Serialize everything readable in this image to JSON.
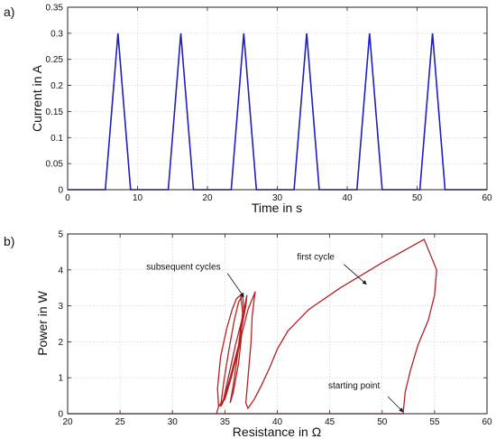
{
  "chart_data": [
    {
      "panel": "a)",
      "type": "line",
      "xlabel": "Time in s",
      "ylabel": "Current in A",
      "xlim": [
        0,
        60
      ],
      "ylim": [
        0,
        0.35
      ],
      "xticks": [
        "0",
        "10",
        "20",
        "30",
        "40",
        "50",
        "60"
      ],
      "yticks": [
        "0",
        "0.05",
        "0.1",
        "0.15",
        "0.2",
        "0.25",
        "0.3",
        "0.35"
      ],
      "grid": true,
      "color": "#1f1fbf",
      "series": [
        {
          "x": [
            0,
            5.4,
            7.2,
            9.0,
            14.4,
            16.2,
            18.0,
            23.4,
            25.2,
            27.0,
            32.4,
            34.2,
            36.0,
            41.4,
            43.2,
            45.0,
            50.4,
            52.2,
            54.0,
            60
          ],
          "y": [
            0,
            0,
            0.3,
            0,
            0,
            0.3,
            0,
            0,
            0.3,
            0,
            0,
            0.3,
            0,
            0,
            0.3,
            0,
            0,
            0.3,
            0,
            0
          ]
        }
      ]
    },
    {
      "panel": "b)",
      "type": "line",
      "xlabel": "Resistance in Ω",
      "ylabel": "Power in W",
      "xlim": [
        20,
        60
      ],
      "ylim": [
        0,
        5
      ],
      "xticks": [
        "20",
        "25",
        "30",
        "35",
        "40",
        "45",
        "50",
        "55",
        "60"
      ],
      "yticks": [
        "0",
        "1",
        "2",
        "3",
        "4",
        "5"
      ],
      "grid": true,
      "color": "#b22222",
      "series": [
        {
          "x": [
            20,
            34,
            52.0,
            52.2,
            52.7,
            53.4,
            54.4,
            55.0,
            55.2,
            54.0,
            50.0,
            46.0,
            43.0,
            41.0,
            40.0,
            39.3,
            38.5,
            37.8,
            37.2,
            37.0,
            37.2,
            37.5,
            37.6,
            37.8,
            37.9,
            37.2,
            36.6,
            36.3,
            35.8,
            35.5,
            35.8,
            36.2,
            36.6,
            37.0,
            37.1,
            36.7,
            36.0,
            35.4,
            34.8,
            34.6,
            34.9,
            35.4,
            35.9,
            36.3,
            36.7,
            36.8,
            36.4,
            35.6,
            35.0,
            34.4,
            34.3,
            34.6,
            35.2,
            35.7,
            36.1,
            36.5,
            36.7,
            36.3,
            35.5,
            34.9,
            34.4,
            34.2
          ],
          "y": [
            0,
            0,
            0,
            0.6,
            1.2,
            1.9,
            2.6,
            3.3,
            4.0,
            4.85,
            4.2,
            3.5,
            2.9,
            2.3,
            1.8,
            1.3,
            0.8,
            0.4,
            0.15,
            0.3,
            1.0,
            2.0,
            2.7,
            3.2,
            3.4,
            2.9,
            2.2,
            1.4,
            0.6,
            0.3,
            0.8,
            1.6,
            2.4,
            3.0,
            3.3,
            2.7,
            1.9,
            1.1,
            0.3,
            0.2,
            0.9,
            1.8,
            2.6,
            3.1,
            3.3,
            2.9,
            1.9,
            1.0,
            0.4,
            0.2,
            0.7,
            1.6,
            2.4,
            2.9,
            3.2,
            3.3,
            2.8,
            1.9,
            1.0,
            0.4,
            0.2,
            0
          ]
        }
      ],
      "annotations": [
        {
          "text": "subsequent cycles",
          "x": 36.8,
          "y": 3.25
        },
        {
          "text": "first cycle",
          "x": 48.5,
          "y": 3.6
        },
        {
          "text": "starting point",
          "x": 52.0,
          "y": 0.05
        }
      ]
    }
  ]
}
